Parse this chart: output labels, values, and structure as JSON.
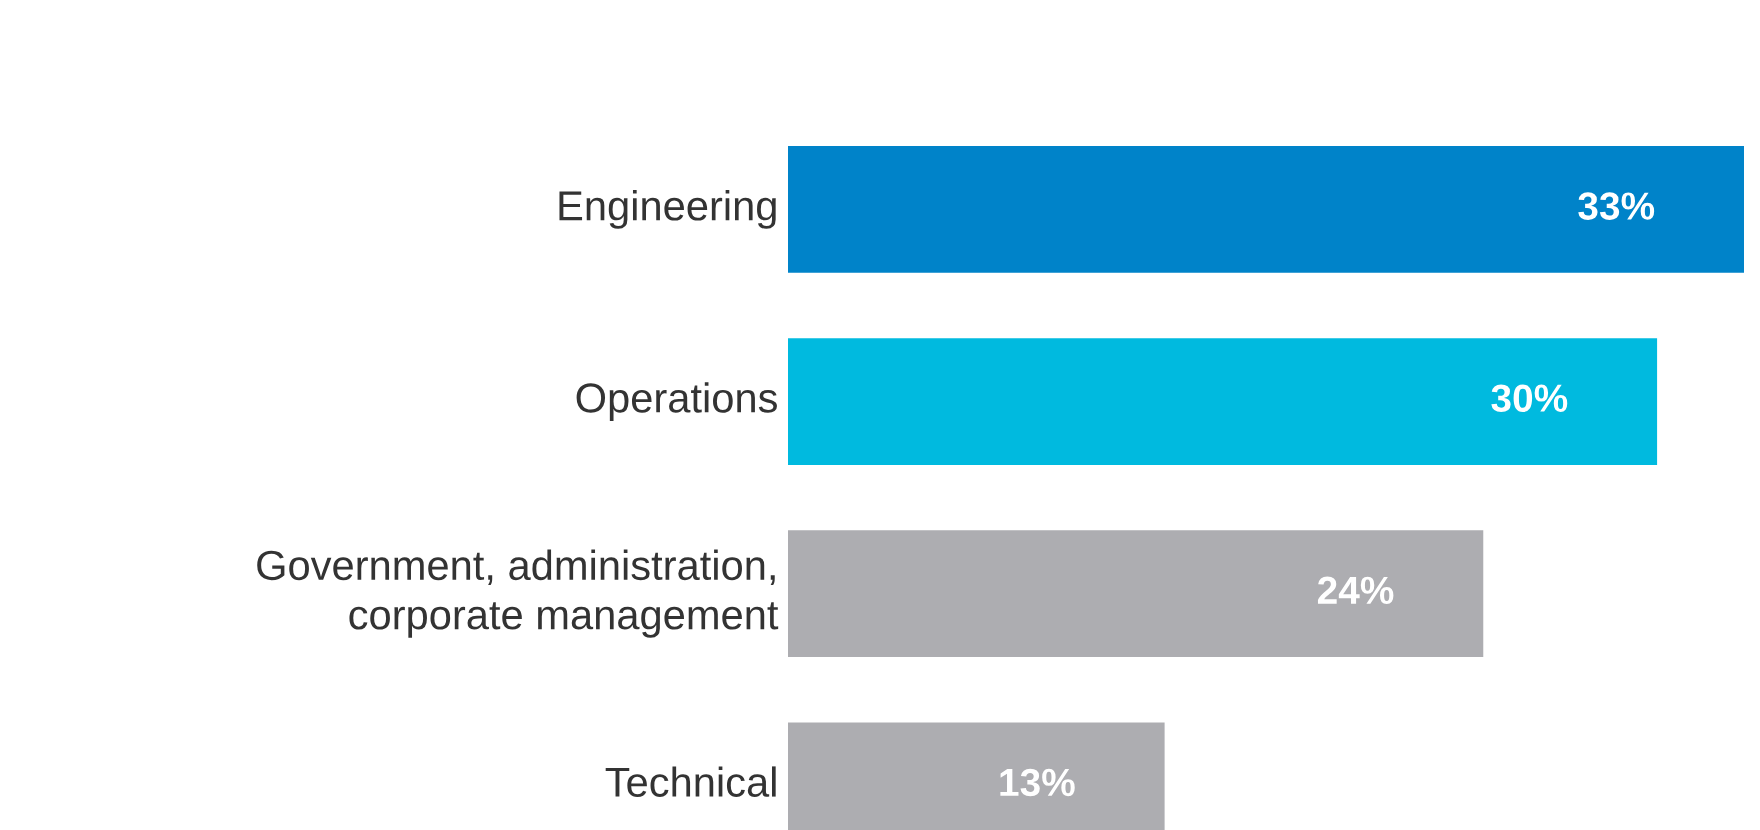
{
  "chart_data": {
    "type": "bar",
    "orientation": "horizontal",
    "categories": [
      "Engineering",
      "Operations",
      "Government, administration,\ncorporate management",
      "Technical"
    ],
    "values": [
      33,
      30,
      24,
      13
    ],
    "value_labels": [
      "33%",
      "30%",
      "24%",
      "13%"
    ],
    "colors": [
      "#0083c9",
      "#00badf",
      "#adadb1",
      "#adadb1"
    ],
    "legend": false
  }
}
